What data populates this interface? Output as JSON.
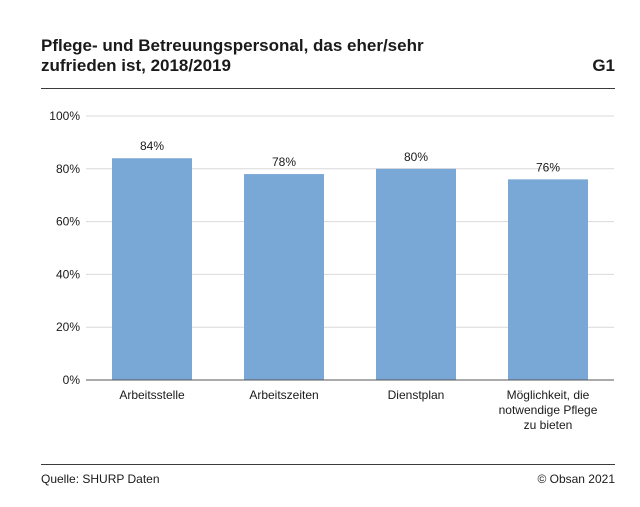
{
  "header": {
    "title_line1": "Pflege- und Betreuungspersonal, das eher/sehr",
    "title_line2": "zufrieden ist, 2018/2019",
    "figure_id": "G1"
  },
  "footer": {
    "source": "Quelle: SHURP Daten",
    "copyright": "© Obsan 2021"
  },
  "colors": {
    "bar": "#79a7d6",
    "grid": "#d9d9d9",
    "axis": "#555555"
  },
  "chart_data": {
    "type": "bar",
    "title": "Pflege- und Betreuungspersonal, das eher/sehr zufrieden ist, 2018/2019",
    "categories": [
      [
        "Arbeitsstelle"
      ],
      [
        "Arbeitszeiten"
      ],
      [
        "Dienstplan"
      ],
      [
        "Möglichkeit, die",
        "notwendige Pflege",
        "zu bieten"
      ]
    ],
    "values": [
      84,
      78,
      80,
      76
    ],
    "value_labels": [
      "84%",
      "78%",
      "80%",
      "76%"
    ],
    "yticks": [
      0,
      20,
      40,
      60,
      80,
      100
    ],
    "ytick_labels": [
      "0%",
      "20%",
      "40%",
      "60%",
      "80%",
      "100%"
    ],
    "ylim": [
      0,
      100
    ],
    "xlabel": "",
    "ylabel": "",
    "grid": true
  }
}
